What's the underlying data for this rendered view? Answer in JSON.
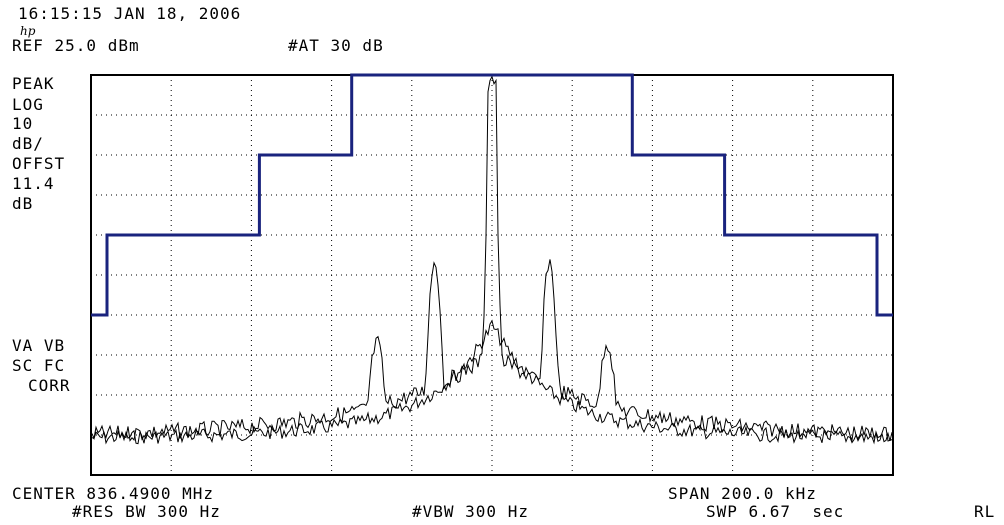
{
  "header": {
    "timestamp": "16:15:15 JAN 18, 2006",
    "logo": "hp",
    "ref_level": "REF 25.0 dBm",
    "attenuation": "#AT 30 dB"
  },
  "left_annotations": {
    "detector": "PEAK",
    "scale_type": "LOG",
    "scale_value": "10",
    "scale_unit": "dB/",
    "offset_label": "OFFST",
    "offset_value": "11.4",
    "offset_unit": "dB",
    "va_vb": "VA VB",
    "sc_fc": "SC FC",
    "corr": "CORR"
  },
  "footer": {
    "center": "CENTER 836.4900 MHz",
    "span": "SPAN 200.0 kHz",
    "res_bw": "#RES BW 300 Hz",
    "vbw": "#VBW 300 Hz",
    "sweep": "SWP 6.67  sec",
    "rl": "RL"
  },
  "colors": {
    "mask": "#1a237e",
    "trace": "#000000",
    "grid": "#000000"
  },
  "chart_data": {
    "type": "line",
    "x_unit": "MHz",
    "xlim": [
      836.39,
      836.59
    ],
    "ylim": [
      -75,
      25
    ],
    "mask": {
      "name": "",
      "points": [
        [
          836.39,
          -35
        ],
        [
          836.394,
          -35
        ],
        [
          836.394,
          -15
        ],
        [
          836.432,
          -15
        ],
        [
          836.432,
          5
        ],
        [
          836.455,
          5
        ],
        [
          836.455,
          25
        ],
        [
          836.525,
          25
        ],
        [
          836.525,
          5
        ],
        [
          836.548,
          5
        ],
        [
          836.548,
          -15
        ],
        [
          836.586,
          -15
        ],
        [
          836.586,
          -35
        ],
        [
          836.59,
          -35
        ]
      ]
    },
    "traces": [
      {
        "name": "",
        "description_level": "max"
      },
      {
        "name": "",
        "description_level": "avg"
      }
    ]
  }
}
